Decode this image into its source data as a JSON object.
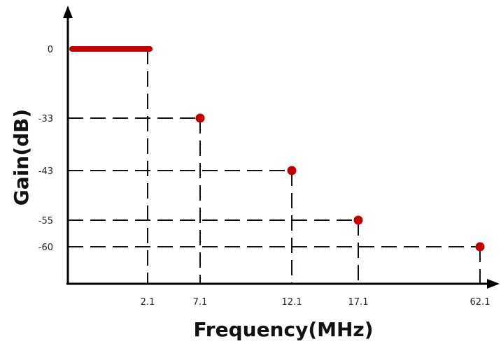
{
  "chart_data": {
    "type": "scatter",
    "xlabel": "Frequency(MHz)",
    "ylabel": "Gain(dB)",
    "x_ticks": [
      "2.1",
      "7.1",
      "12.1",
      "17.1",
      "62.1"
    ],
    "y_ticks": [
      "0",
      "-33",
      "-43",
      "-55",
      "-60"
    ],
    "passband": {
      "x_start": 0,
      "x_end": 2.1,
      "y": 0
    },
    "points": [
      {
        "x": 7.1,
        "y": -33
      },
      {
        "x": 12.1,
        "y": -43
      },
      {
        "x": 17.1,
        "y": -55
      },
      {
        "x": 62.1,
        "y": -60
      }
    ],
    "colors": {
      "marker": "#c00000",
      "axis": "#000000",
      "guide": "#111111"
    }
  }
}
